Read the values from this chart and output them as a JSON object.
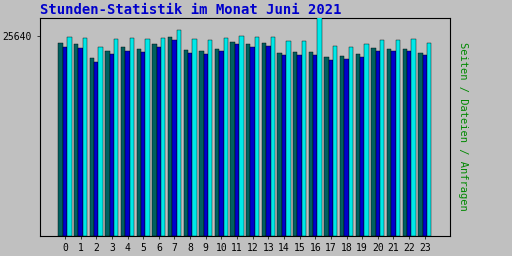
{
  "title": "Stunden-Statistik im Monat Juni 2021",
  "title_color": "#0000cc",
  "title_fontsize": 10,
  "ylabel": "Seiten / Dateien / Anfragen",
  "ylabel_color": "#008800",
  "ylabel_fontsize": 7.5,
  "ytick_label": "25640",
  "ytick_value": 25640,
  "ylim_max": 28000,
  "background_color": "#c0c0c0",
  "plot_bg_color": "#c0c0c0",
  "hours": [
    0,
    1,
    2,
    3,
    4,
    5,
    6,
    7,
    8,
    9,
    10,
    11,
    12,
    13,
    14,
    15,
    16,
    17,
    18,
    19,
    20,
    21,
    22,
    23
  ],
  "bar_width": 0.28,
  "colors": [
    "#006060",
    "#0000cc",
    "#00e8e8"
  ],
  "values_seiten": [
    24800,
    24600,
    22800,
    23700,
    24200,
    24000,
    24600,
    25500,
    23900,
    23700,
    24000,
    24900,
    24600,
    24800,
    23500,
    23600,
    23600,
    23000,
    23100,
    23400,
    24100,
    24000,
    24000,
    23500
  ],
  "values_dateien": [
    24300,
    24100,
    22300,
    23300,
    23800,
    23600,
    24200,
    25100,
    23500,
    23300,
    23700,
    24600,
    24200,
    24400,
    23200,
    23200,
    23200,
    22600,
    22700,
    23000,
    23800,
    23700,
    23700,
    23200
  ],
  "values_anfragen": [
    25500,
    25400,
    24200,
    25300,
    25400,
    25300,
    25400,
    26400,
    25300,
    25200,
    25400,
    25700,
    25600,
    25500,
    25000,
    25000,
    35000,
    24400,
    24300,
    24600,
    25200,
    25200,
    25300,
    24800
  ]
}
